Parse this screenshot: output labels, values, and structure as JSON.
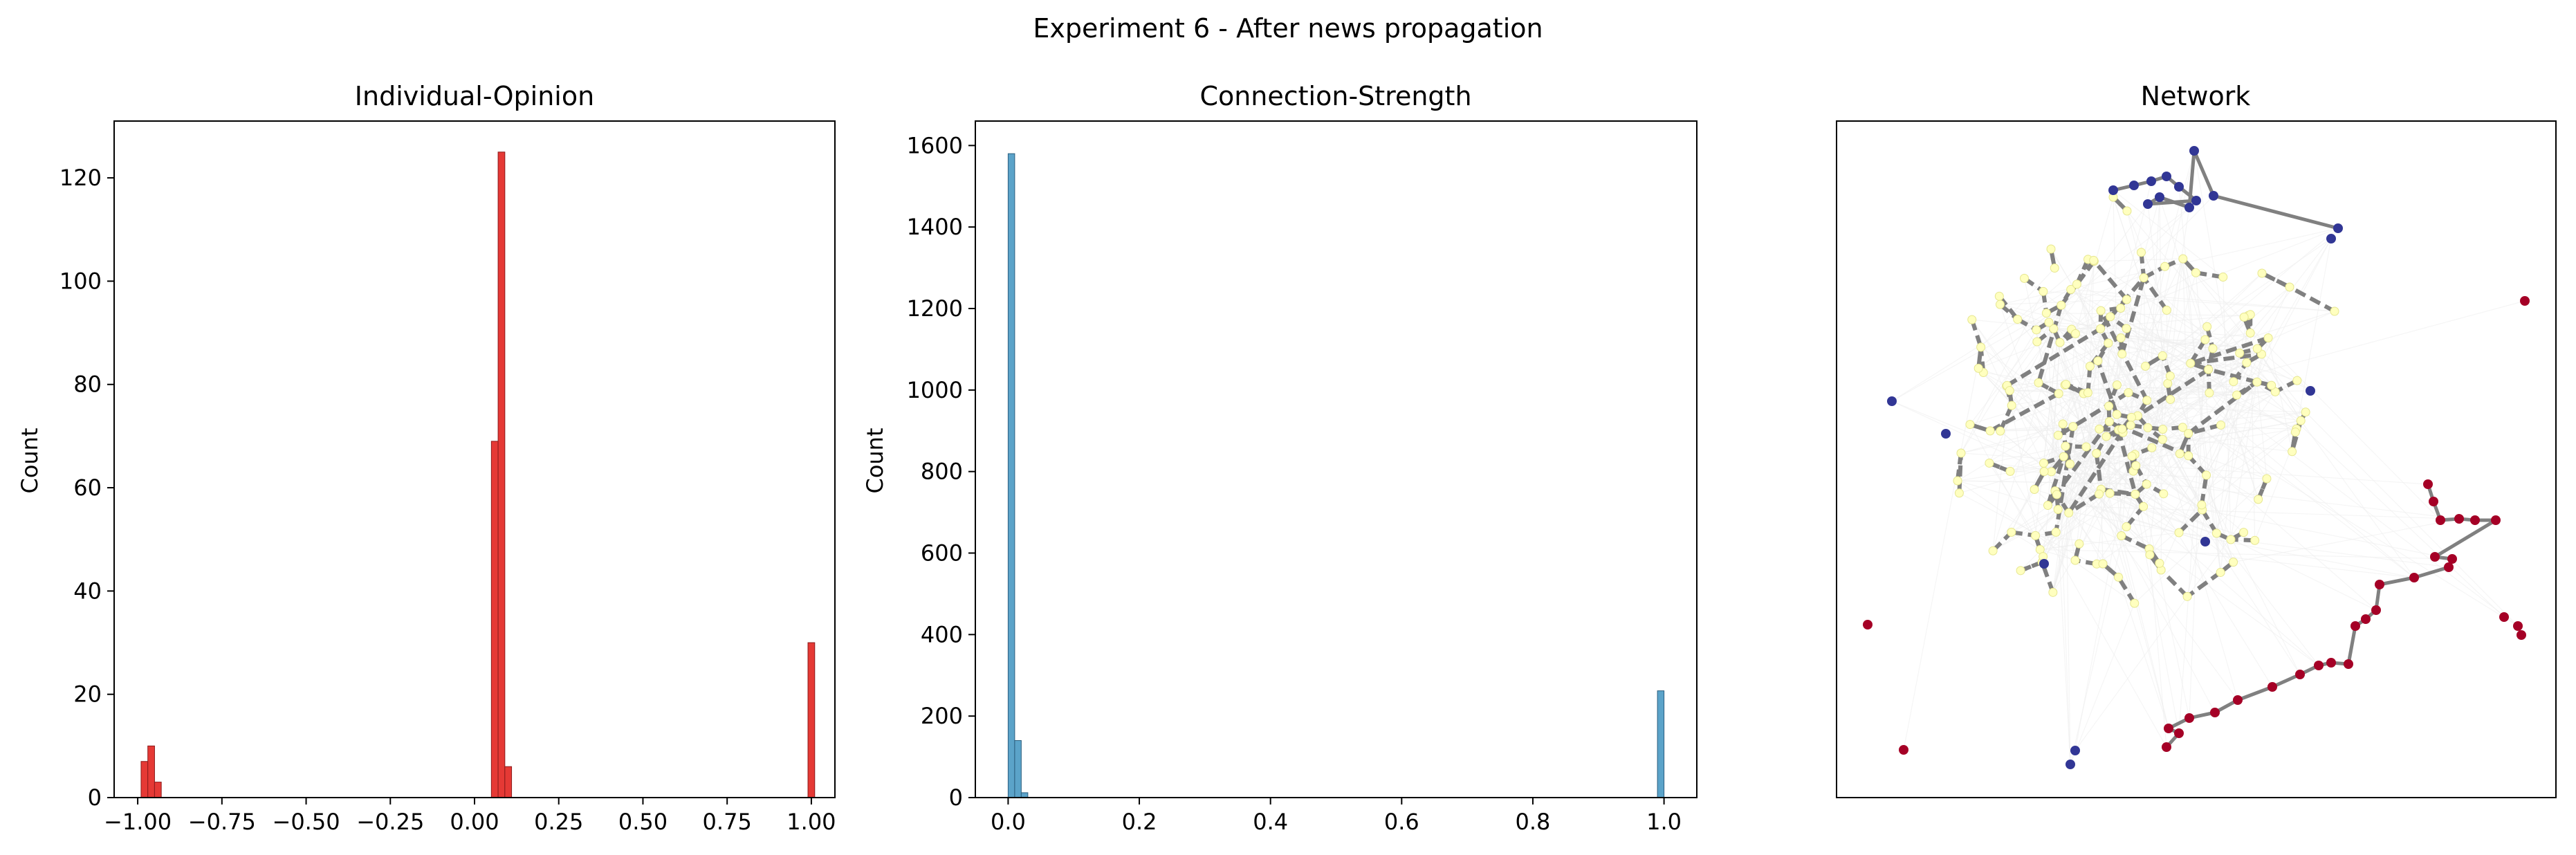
{
  "figure": {
    "suptitle": "Experiment 6 - After news propagation"
  },
  "chart_data": [
    {
      "type": "bar",
      "title": "Individual-Opinion",
      "xlabel": "",
      "ylabel": "Count",
      "xlim": [
        -1.07,
        1.07
      ],
      "ylim": [
        0,
        131
      ],
      "xticks": [
        -1.0,
        -0.75,
        -0.5,
        -0.25,
        0.0,
        0.25,
        0.5,
        0.75,
        1.0
      ],
      "xtick_labels": [
        "−1.00",
        "−0.75",
        "−0.50",
        "−0.25",
        "0.00",
        "0.25",
        "0.50",
        "0.75",
        "1.00"
      ],
      "yticks": [
        0,
        20,
        40,
        60,
        80,
        100,
        120
      ],
      "ytick_labels": [
        "0",
        "20",
        "40",
        "60",
        "80",
        "100",
        "120"
      ],
      "bin_width": 0.02,
      "bins": [
        {
          "x": -0.98,
          "value": 7
        },
        {
          "x": -0.96,
          "value": 10
        },
        {
          "x": -0.94,
          "value": 3
        },
        {
          "x": 0.06,
          "value": 69
        },
        {
          "x": 0.08,
          "value": 125
        },
        {
          "x": 0.1,
          "value": 6
        },
        {
          "x": 1.0,
          "value": 30
        }
      ],
      "color": "#e53935",
      "edge_color": "#8b1a1a"
    },
    {
      "type": "bar",
      "title": "Connection-Strength",
      "xlabel": "",
      "ylabel": "Count",
      "xlim": [
        -0.05,
        1.05
      ],
      "ylim": [
        0,
        1660
      ],
      "xticks": [
        0.0,
        0.2,
        0.4,
        0.6,
        0.8,
        1.0
      ],
      "xtick_labels": [
        "0.0",
        "0.2",
        "0.4",
        "0.6",
        "0.8",
        "1.0"
      ],
      "yticks": [
        0,
        200,
        400,
        600,
        800,
        1000,
        1200,
        1400,
        1600
      ],
      "ytick_labels": [
        "0",
        "200",
        "400",
        "600",
        "800",
        "1000",
        "1200",
        "1400",
        "1600"
      ],
      "bin_width": 0.01,
      "bins": [
        {
          "x": 0.005,
          "value": 1580
        },
        {
          "x": 0.015,
          "value": 140
        },
        {
          "x": 0.025,
          "value": 12
        },
        {
          "x": 0.995,
          "value": 262
        }
      ],
      "color": "#5ba3c9",
      "edge_color": "#2b5f7f"
    },
    {
      "type": "network",
      "title": "Network",
      "colors": {
        "negative": "#313695",
        "neutral": "#ffffbf",
        "positive": "#a50026",
        "edge_strong": "#808080",
        "edge_weak": "#eeeeee"
      }
    }
  ]
}
